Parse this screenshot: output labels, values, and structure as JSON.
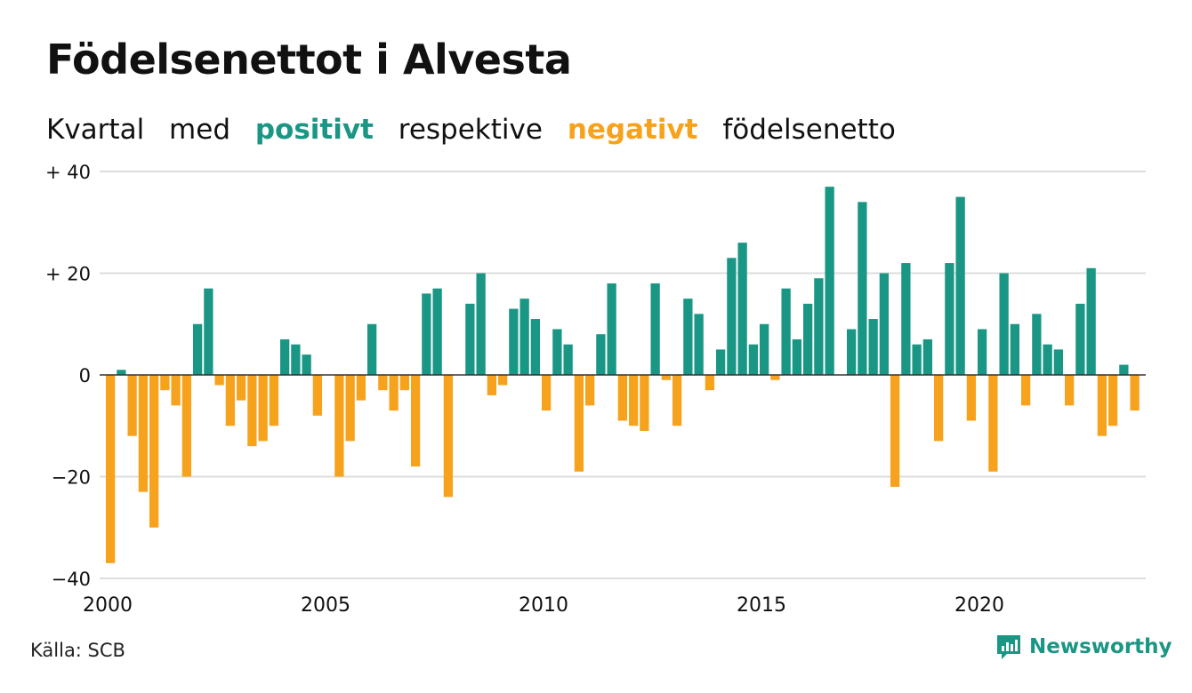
{
  "title": "Födelsenettot i Alvesta",
  "subtitle": {
    "part1": "Kvartal",
    "part2": "med",
    "positive": "positivt",
    "part3": "respektive",
    "negative": "negativt",
    "part4": "födelsenetto"
  },
  "source": "Källa: SCB",
  "brand": {
    "name": "Newsworthy",
    "icon": "newsworthy-logo-icon"
  },
  "colors": {
    "positive": "#1a9685",
    "negative": "#f6a21d",
    "grid": "#dddddd",
    "text": "#111111",
    "brand": "#1a9685"
  },
  "chart_data": {
    "type": "bar",
    "title": "Födelsenettot i Alvesta",
    "xlabel": "",
    "ylabel": "",
    "ylim": [
      -40,
      40
    ],
    "yticks": [
      {
        "value": 40,
        "label": "+ 40"
      },
      {
        "value": 20,
        "label": "+ 20"
      },
      {
        "value": 0,
        "label": "0"
      },
      {
        "value": -20,
        "label": "−20"
      },
      {
        "value": -40,
        "label": "−40"
      }
    ],
    "xticks": [
      "2000",
      "2005",
      "2010",
      "2015",
      "2020"
    ],
    "xlim": [
      "2000",
      "2024"
    ],
    "grid": true,
    "categories": [
      "2000 Q1",
      "2000 Q2",
      "2000 Q3",
      "2000 Q4",
      "2001 Q1",
      "2001 Q2",
      "2001 Q3",
      "2001 Q4",
      "2002 Q1",
      "2002 Q2",
      "2002 Q3",
      "2002 Q4",
      "2003 Q1",
      "2003 Q2",
      "2003 Q3",
      "2003 Q4",
      "2004 Q1",
      "2004 Q2",
      "2004 Q3",
      "2004 Q4",
      "2005 Q1",
      "2005 Q2",
      "2005 Q3",
      "2005 Q4",
      "2006 Q1",
      "2006 Q2",
      "2006 Q3",
      "2006 Q4",
      "2007 Q1",
      "2007 Q2",
      "2007 Q3",
      "2007 Q4",
      "2008 Q1",
      "2008 Q2",
      "2008 Q3",
      "2008 Q4",
      "2009 Q1",
      "2009 Q2",
      "2009 Q3",
      "2009 Q4",
      "2010 Q1",
      "2010 Q2",
      "2010 Q3",
      "2010 Q4",
      "2011 Q1",
      "2011 Q2",
      "2011 Q3",
      "2011 Q4",
      "2012 Q1",
      "2012 Q2",
      "2012 Q3",
      "2012 Q4",
      "2013 Q1",
      "2013 Q2",
      "2013 Q3",
      "2013 Q4",
      "2014 Q1",
      "2014 Q2",
      "2014 Q3",
      "2014 Q4",
      "2015 Q1",
      "2015 Q2",
      "2015 Q3",
      "2015 Q4",
      "2016 Q1",
      "2016 Q2",
      "2016 Q3",
      "2016 Q4",
      "2017 Q1",
      "2017 Q2",
      "2017 Q3",
      "2017 Q4",
      "2018 Q1",
      "2018 Q2",
      "2018 Q3",
      "2018 Q4",
      "2019 Q1",
      "2019 Q2",
      "2019 Q3",
      "2019 Q4",
      "2020 Q1",
      "2020 Q2",
      "2020 Q3",
      "2020 Q4",
      "2021 Q1",
      "2021 Q2",
      "2021 Q3",
      "2021 Q4",
      "2022 Q1",
      "2022 Q2",
      "2022 Q3",
      "2022 Q4",
      "2023 Q1",
      "2023 Q2",
      "2023 Q3",
      "2023 Q4"
    ],
    "values": [
      -37,
      1,
      -12,
      -23,
      -30,
      -3,
      -6,
      -20,
      10,
      17,
      -2,
      -10,
      -5,
      -14,
      -13,
      -10,
      7,
      6,
      4,
      -8,
      0,
      -20,
      -13,
      -5,
      10,
      -3,
      -7,
      -3,
      -18,
      16,
      17,
      -24,
      0,
      14,
      20,
      -4,
      -2,
      13,
      15,
      11,
      -7,
      9,
      6,
      -19,
      -6,
      8,
      18,
      -9,
      -10,
      -11,
      18,
      -1,
      -10,
      15,
      12,
      -3,
      5,
      23,
      26,
      6,
      10,
      -1,
      17,
      7,
      14,
      19,
      37,
      0,
      9,
      34,
      11,
      20,
      -22,
      22,
      6,
      7,
      -13,
      22,
      35,
      -9,
      9,
      -19,
      20,
      10,
      -6,
      12,
      6,
      5,
      -6,
      14,
      21,
      -12,
      -10,
      2,
      -7,
      0
    ]
  }
}
